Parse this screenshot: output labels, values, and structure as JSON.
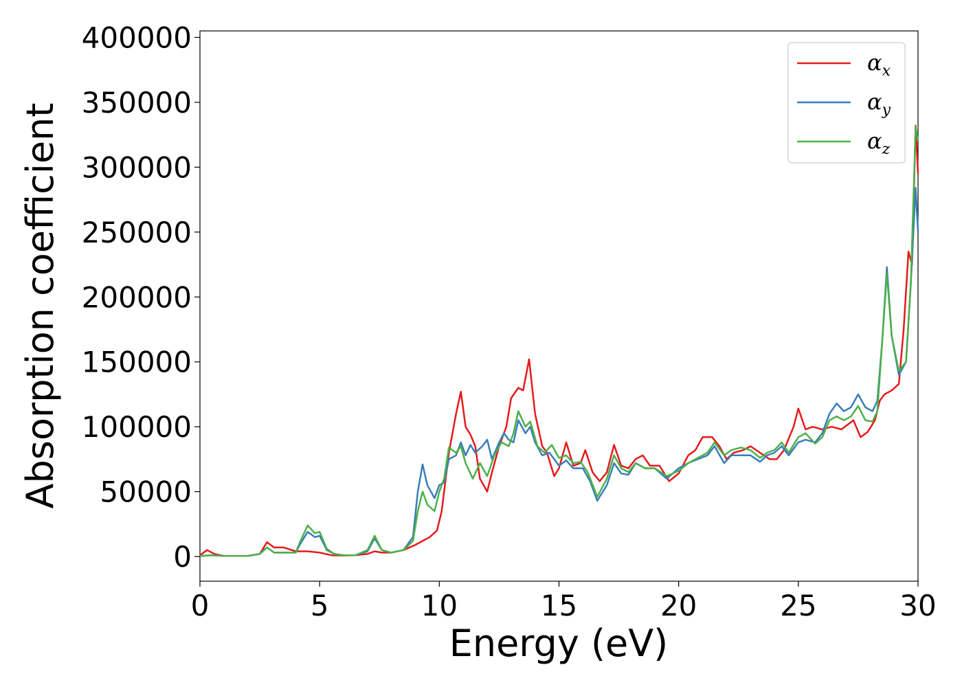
{
  "chart_data": {
    "type": "line",
    "title": "",
    "xlabel": "Energy (eV)",
    "ylabel": "Absorption coefficient",
    "xlim": [
      0,
      30
    ],
    "ylim": [
      -19000,
      405000
    ],
    "xticks": [
      0,
      5,
      10,
      15,
      20,
      25,
      30
    ],
    "yticks": [
      0,
      50000,
      100000,
      150000,
      200000,
      250000,
      300000,
      350000,
      400000
    ],
    "xtick_labels": [
      "0",
      "5",
      "10",
      "15",
      "20",
      "25",
      "30"
    ],
    "ytick_labels": [
      "0",
      "50000",
      "100000",
      "150000",
      "200000",
      "250000",
      "300000",
      "350000",
      "400000"
    ],
    "grid": false,
    "legend_position": "top-right",
    "series": [
      {
        "name": "α",
        "subscript": "x",
        "color": "#e41a1c",
        "points": [
          [
            0,
            1000
          ],
          [
            0.3,
            5000
          ],
          [
            0.6,
            2000
          ],
          [
            1,
            500
          ],
          [
            2,
            500
          ],
          [
            2.5,
            2000
          ],
          [
            2.8,
            11000
          ],
          [
            3.1,
            7000
          ],
          [
            3.5,
            7000
          ],
          [
            4,
            4000
          ],
          [
            4.5,
            4000
          ],
          [
            5,
            3000
          ],
          [
            5.5,
            1000
          ],
          [
            6,
            800
          ],
          [
            6.5,
            1000
          ],
          [
            7,
            2000
          ],
          [
            7.3,
            4000
          ],
          [
            7.6,
            3000
          ],
          [
            8,
            3000
          ],
          [
            8.5,
            5000
          ],
          [
            9,
            9000
          ],
          [
            9.3,
            12000
          ],
          [
            9.6,
            15000
          ],
          [
            9.9,
            20000
          ],
          [
            10.1,
            35000
          ],
          [
            10.4,
            80000
          ],
          [
            10.7,
            110000
          ],
          [
            10.9,
            127000
          ],
          [
            11.1,
            100000
          ],
          [
            11.3,
            94000
          ],
          [
            11.5,
            85000
          ],
          [
            11.7,
            60000
          ],
          [
            12,
            50000
          ],
          [
            12.2,
            65000
          ],
          [
            12.5,
            85000
          ],
          [
            12.8,
            100000
          ],
          [
            13.0,
            122000
          ],
          [
            13.3,
            130000
          ],
          [
            13.5,
            128000
          ],
          [
            13.75,
            152000
          ],
          [
            14.0,
            110000
          ],
          [
            14.3,
            85000
          ],
          [
            14.5,
            80000
          ],
          [
            14.8,
            62000
          ],
          [
            15.0,
            68000
          ],
          [
            15.3,
            88000
          ],
          [
            15.6,
            70000
          ],
          [
            15.9,
            72000
          ],
          [
            16.1,
            82000
          ],
          [
            16.4,
            65000
          ],
          [
            16.7,
            58000
          ],
          [
            17.0,
            65000
          ],
          [
            17.3,
            86000
          ],
          [
            17.6,
            70000
          ],
          [
            17.9,
            68000
          ],
          [
            18.2,
            75000
          ],
          [
            18.5,
            78000
          ],
          [
            18.8,
            70000
          ],
          [
            19.2,
            70000
          ],
          [
            19.6,
            58000
          ],
          [
            20.0,
            64000
          ],
          [
            20.4,
            78000
          ],
          [
            20.7,
            82000
          ],
          [
            21.0,
            92000
          ],
          [
            21.4,
            92000
          ],
          [
            21.7,
            85000
          ],
          [
            22.0,
            75000
          ],
          [
            22.3,
            80000
          ],
          [
            22.7,
            82000
          ],
          [
            23.0,
            85000
          ],
          [
            23.4,
            80000
          ],
          [
            23.8,
            75000
          ],
          [
            24.1,
            75000
          ],
          [
            24.4,
            82000
          ],
          [
            24.8,
            100000
          ],
          [
            25.0,
            114000
          ],
          [
            25.3,
            98000
          ],
          [
            25.6,
            100000
          ],
          [
            26.0,
            98000
          ],
          [
            26.4,
            100000
          ],
          [
            26.8,
            98000
          ],
          [
            27.3,
            105000
          ],
          [
            27.6,
            92000
          ],
          [
            27.9,
            96000
          ],
          [
            28.2,
            105000
          ],
          [
            28.4,
            120000
          ],
          [
            28.6,
            125000
          ],
          [
            28.9,
            128000
          ],
          [
            29.2,
            133000
          ],
          [
            29.4,
            175000
          ],
          [
            29.6,
            235000
          ],
          [
            29.75,
            225000
          ],
          [
            29.9,
            332000
          ],
          [
            30.0,
            295000
          ]
        ]
      },
      {
        "name": "α",
        "subscript": "y",
        "color": "#377eb8",
        "points": [
          [
            0,
            500
          ],
          [
            0.5,
            1000
          ],
          [
            1,
            500
          ],
          [
            2,
            500
          ],
          [
            2.5,
            2000
          ],
          [
            2.8,
            7000
          ],
          [
            3.1,
            3000
          ],
          [
            3.5,
            3000
          ],
          [
            4,
            3000
          ],
          [
            4.2,
            10000
          ],
          [
            4.5,
            19000
          ],
          [
            4.8,
            15000
          ],
          [
            5.0,
            16000
          ],
          [
            5.3,
            5000
          ],
          [
            5.6,
            2000
          ],
          [
            6,
            1000
          ],
          [
            6.5,
            1000
          ],
          [
            7,
            4000
          ],
          [
            7.3,
            14000
          ],
          [
            7.6,
            5000
          ],
          [
            8,
            3000
          ],
          [
            8.5,
            5000
          ],
          [
            8.9,
            15000
          ],
          [
            9.1,
            50000
          ],
          [
            9.3,
            71000
          ],
          [
            9.5,
            55000
          ],
          [
            9.8,
            45000
          ],
          [
            10.0,
            55000
          ],
          [
            10.2,
            57000
          ],
          [
            10.4,
            75000
          ],
          [
            10.7,
            78000
          ],
          [
            10.9,
            88000
          ],
          [
            11.1,
            78000
          ],
          [
            11.3,
            86000
          ],
          [
            11.5,
            80000
          ],
          [
            11.8,
            85000
          ],
          [
            12.0,
            90000
          ],
          [
            12.2,
            75000
          ],
          [
            12.5,
            88000
          ],
          [
            12.7,
            95000
          ],
          [
            12.9,
            90000
          ],
          [
            13.1,
            88000
          ],
          [
            13.3,
            105000
          ],
          [
            13.6,
            95000
          ],
          [
            13.8,
            100000
          ],
          [
            14.0,
            88000
          ],
          [
            14.3,
            78000
          ],
          [
            14.6,
            80000
          ],
          [
            15.0,
            70000
          ],
          [
            15.3,
            74000
          ],
          [
            15.6,
            68000
          ],
          [
            16.0,
            68000
          ],
          [
            16.3,
            58000
          ],
          [
            16.6,
            43000
          ],
          [
            17.0,
            55000
          ],
          [
            17.3,
            72000
          ],
          [
            17.6,
            64000
          ],
          [
            17.9,
            63000
          ],
          [
            18.2,
            72000
          ],
          [
            18.6,
            68000
          ],
          [
            19.0,
            68000
          ],
          [
            19.5,
            60000
          ],
          [
            20.0,
            68000
          ],
          [
            20.4,
            72000
          ],
          [
            20.8,
            75000
          ],
          [
            21.2,
            78000
          ],
          [
            21.5,
            85000
          ],
          [
            21.9,
            72000
          ],
          [
            22.2,
            78000
          ],
          [
            22.6,
            78000
          ],
          [
            23.0,
            78000
          ],
          [
            23.4,
            73000
          ],
          [
            23.7,
            78000
          ],
          [
            24.0,
            80000
          ],
          [
            24.3,
            85000
          ],
          [
            24.6,
            78000
          ],
          [
            25.0,
            88000
          ],
          [
            25.3,
            90000
          ],
          [
            25.7,
            88000
          ],
          [
            26.0,
            95000
          ],
          [
            26.3,
            110000
          ],
          [
            26.6,
            118000
          ],
          [
            26.9,
            112000
          ],
          [
            27.2,
            115000
          ],
          [
            27.5,
            125000
          ],
          [
            27.8,
            115000
          ],
          [
            28.1,
            112000
          ],
          [
            28.3,
            120000
          ],
          [
            28.5,
            165000
          ],
          [
            28.7,
            223000
          ],
          [
            28.9,
            170000
          ],
          [
            29.2,
            140000
          ],
          [
            29.5,
            150000
          ],
          [
            29.7,
            210000
          ],
          [
            29.9,
            284000
          ],
          [
            30.0,
            250000
          ]
        ]
      },
      {
        "name": "α",
        "subscript": "z",
        "color": "#4daf4a",
        "points": [
          [
            0,
            500
          ],
          [
            0.5,
            1000
          ],
          [
            1,
            500
          ],
          [
            2,
            500
          ],
          [
            2.5,
            2000
          ],
          [
            2.8,
            7000
          ],
          [
            3.1,
            3000
          ],
          [
            3.5,
            3000
          ],
          [
            4,
            3000
          ],
          [
            4.2,
            12000
          ],
          [
            4.5,
            24000
          ],
          [
            4.8,
            18000
          ],
          [
            5.0,
            19000
          ],
          [
            5.3,
            6000
          ],
          [
            5.6,
            2000
          ],
          [
            6,
            1000
          ],
          [
            6.5,
            1000
          ],
          [
            7,
            5000
          ],
          [
            7.3,
            16000
          ],
          [
            7.6,
            5000
          ],
          [
            8,
            3000
          ],
          [
            8.5,
            5000
          ],
          [
            8.9,
            12000
          ],
          [
            9.1,
            35000
          ],
          [
            9.3,
            50000
          ],
          [
            9.5,
            40000
          ],
          [
            9.8,
            35000
          ],
          [
            10.0,
            50000
          ],
          [
            10.2,
            60000
          ],
          [
            10.4,
            84000
          ],
          [
            10.7,
            80000
          ],
          [
            10.9,
            85000
          ],
          [
            11.1,
            72000
          ],
          [
            11.4,
            60000
          ],
          [
            11.7,
            72000
          ],
          [
            12.0,
            62000
          ],
          [
            12.3,
            78000
          ],
          [
            12.6,
            88000
          ],
          [
            12.9,
            85000
          ],
          [
            13.1,
            95000
          ],
          [
            13.3,
            112000
          ],
          [
            13.6,
            100000
          ],
          [
            13.8,
            104000
          ],
          [
            14.1,
            85000
          ],
          [
            14.4,
            80000
          ],
          [
            14.7,
            86000
          ],
          [
            15.0,
            76000
          ],
          [
            15.3,
            78000
          ],
          [
            15.6,
            72000
          ],
          [
            15.9,
            73000
          ],
          [
            16.2,
            65000
          ],
          [
            16.6,
            46000
          ],
          [
            17.0,
            60000
          ],
          [
            17.3,
            78000
          ],
          [
            17.6,
            68000
          ],
          [
            17.9,
            65000
          ],
          [
            18.2,
            72000
          ],
          [
            18.6,
            68000
          ],
          [
            19.0,
            68000
          ],
          [
            19.5,
            62000
          ],
          [
            20.0,
            66000
          ],
          [
            20.4,
            72000
          ],
          [
            20.8,
            76000
          ],
          [
            21.2,
            80000
          ],
          [
            21.5,
            88000
          ],
          [
            21.9,
            78000
          ],
          [
            22.2,
            82000
          ],
          [
            22.6,
            84000
          ],
          [
            23.0,
            82000
          ],
          [
            23.4,
            76000
          ],
          [
            23.7,
            80000
          ],
          [
            24.0,
            82000
          ],
          [
            24.3,
            88000
          ],
          [
            24.6,
            80000
          ],
          [
            25.0,
            92000
          ],
          [
            25.3,
            95000
          ],
          [
            25.7,
            87000
          ],
          [
            26.0,
            92000
          ],
          [
            26.3,
            105000
          ],
          [
            26.6,
            108000
          ],
          [
            26.9,
            105000
          ],
          [
            27.2,
            108000
          ],
          [
            27.5,
            116000
          ],
          [
            27.8,
            105000
          ],
          [
            28.1,
            104000
          ],
          [
            28.3,
            112000
          ],
          [
            28.5,
            165000
          ],
          [
            28.7,
            218000
          ],
          [
            28.9,
            170000
          ],
          [
            29.2,
            143000
          ],
          [
            29.5,
            150000
          ],
          [
            29.7,
            210000
          ],
          [
            29.9,
            331000
          ],
          [
            30.0,
            320000
          ]
        ]
      }
    ]
  }
}
